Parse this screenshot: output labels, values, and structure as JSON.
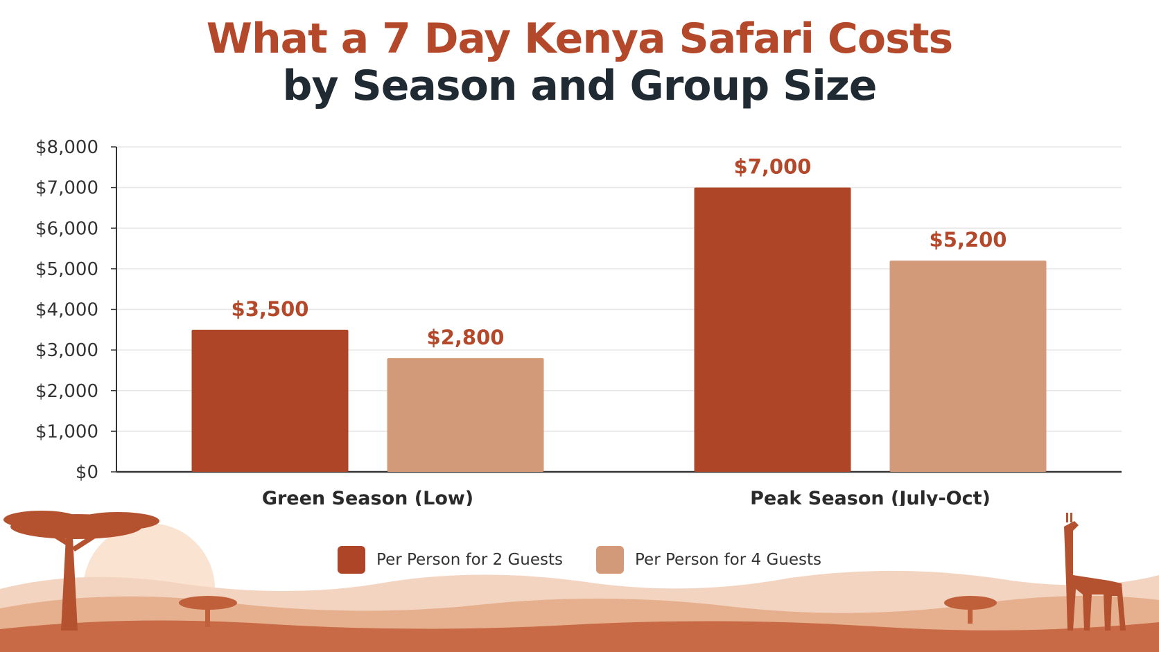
{
  "title": {
    "line1": "What a 7 Day Kenya Safari Costs",
    "line2": "by Season and Group Size"
  },
  "colors": {
    "title_accent": "#b4482a",
    "title_dark": "#1f2a33",
    "series_2_guests": "#ae4527",
    "series_4_guests": "#d39a79",
    "axis": "#333333",
    "grid": "#e6e6e6",
    "value_label": "#b4482a"
  },
  "chart_data": {
    "type": "bar",
    "title": "What a 7 Day Kenya Safari Costs by Season and Group Size",
    "categories": [
      "Green Season (Low)",
      "Peak Season (July-Oct)"
    ],
    "series": [
      {
        "name": "Per Person for 2 Guests",
        "values": [
          3500,
          7000
        ],
        "labels": [
          "$3,500",
          "$7,000"
        ]
      },
      {
        "name": "Per Person for 4 Guests",
        "values": [
          2800,
          5200
        ],
        "labels": [
          "$2,800",
          "$5,200"
        ]
      }
    ],
    "ylim": [
      0,
      8000
    ],
    "yticks": [
      "$0",
      "$1,000",
      "$2,000",
      "$3,000",
      "$4,000",
      "$5,000",
      "$6,000",
      "$7,000",
      "$8,000"
    ],
    "xlabel": "",
    "ylabel": "",
    "grid": true,
    "legend_position": "bottom"
  },
  "legend": [
    {
      "label": "Per Person for 2 Guests",
      "icon": "square-swatch"
    },
    {
      "label": "Per Person for 4 Guests",
      "icon": "square-swatch"
    }
  ]
}
